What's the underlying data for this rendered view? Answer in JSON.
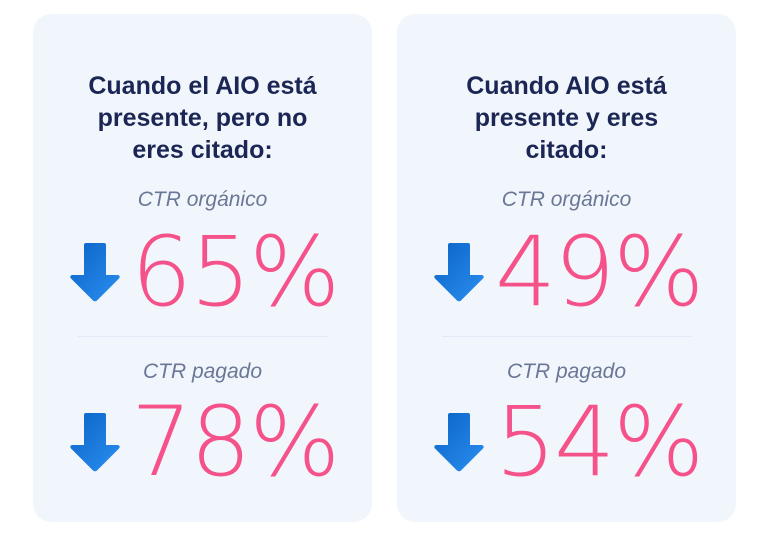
{
  "cards": [
    {
      "title": "Cuando el AIO está\npresente, pero no\neres citado:",
      "organic_label": "CTR orgánico",
      "organic_value": "65%",
      "paid_label": "CTR pagado",
      "paid_value": "78%"
    },
    {
      "title": "Cuando AIO está\npresente y eres\ncitado:",
      "organic_label": "CTR orgánico",
      "organic_value": "49%",
      "paid_label": "CTR pagado",
      "paid_value": "54%"
    }
  ],
  "icons": {
    "trend": "arrow-down-icon"
  },
  "colors": {
    "value": "#f5528a",
    "arrow": "#1a73d9",
    "title": "#1c2654",
    "card": "#f1f6fd"
  }
}
